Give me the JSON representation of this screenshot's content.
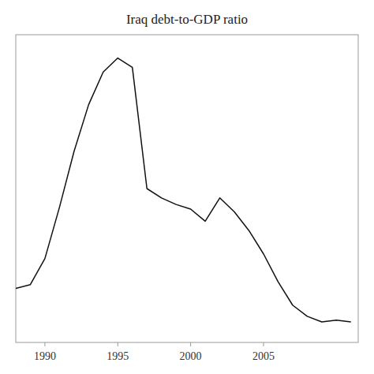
{
  "chart_data": {
    "type": "line",
    "title": "Iraq debt-to-GDP ratio",
    "x": [
      1988,
      1989,
      1990,
      1991,
      1992,
      1993,
      1994,
      1995,
      1996,
      1997,
      1998,
      1999,
      2000,
      2001,
      2002,
      2003,
      2004,
      2005,
      2006,
      2007,
      2008,
      2009,
      2010,
      2011
    ],
    "values": [
      58,
      62,
      90,
      145,
      205,
      255,
      290,
      305,
      295,
      165,
      155,
      148,
      143,
      130,
      155,
      140,
      120,
      95,
      65,
      40,
      28,
      22,
      24,
      22
    ],
    "color": "#111111",
    "xlim": [
      1988.0,
      2011.5
    ],
    "xticks": [
      1990,
      1995,
      2000,
      2005
    ],
    "ylim": [
      0,
      330
    ],
    "tick_labels": "x"
  }
}
